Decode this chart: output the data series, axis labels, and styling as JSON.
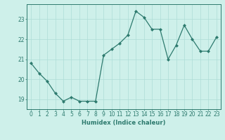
{
  "x": [
    0,
    1,
    2,
    3,
    4,
    5,
    6,
    7,
    8,
    9,
    10,
    11,
    12,
    13,
    14,
    15,
    16,
    17,
    18,
    19,
    20,
    21,
    22,
    23
  ],
  "y": [
    20.8,
    20.3,
    19.9,
    19.3,
    18.9,
    19.1,
    18.9,
    18.9,
    18.9,
    21.2,
    21.5,
    21.8,
    22.2,
    23.4,
    23.1,
    22.5,
    22.5,
    21.0,
    21.7,
    22.7,
    22.0,
    21.4,
    21.4,
    22.1
  ],
  "line_color": "#2d7a6e",
  "marker": "D",
  "marker_size": 2.0,
  "bg_color": "#cef0ea",
  "grid_color": "#aeddd6",
  "xlabel": "Humidex (Indice chaleur)",
  "ylabel": "",
  "xlim": [
    -0.5,
    23.5
  ],
  "ylim": [
    18.5,
    23.75
  ],
  "yticks": [
    19,
    20,
    21,
    22,
    23
  ],
  "xticks": [
    0,
    1,
    2,
    3,
    4,
    5,
    6,
    7,
    8,
    9,
    10,
    11,
    12,
    13,
    14,
    15,
    16,
    17,
    18,
    19,
    20,
    21,
    22,
    23
  ],
  "xlabel_fontsize": 6.0,
  "tick_fontsize": 5.5,
  "axes_color": "#2d7a6e",
  "tick_color": "#2d7a6e",
  "spine_color": "#2d7a6e",
  "linewidth": 0.9
}
